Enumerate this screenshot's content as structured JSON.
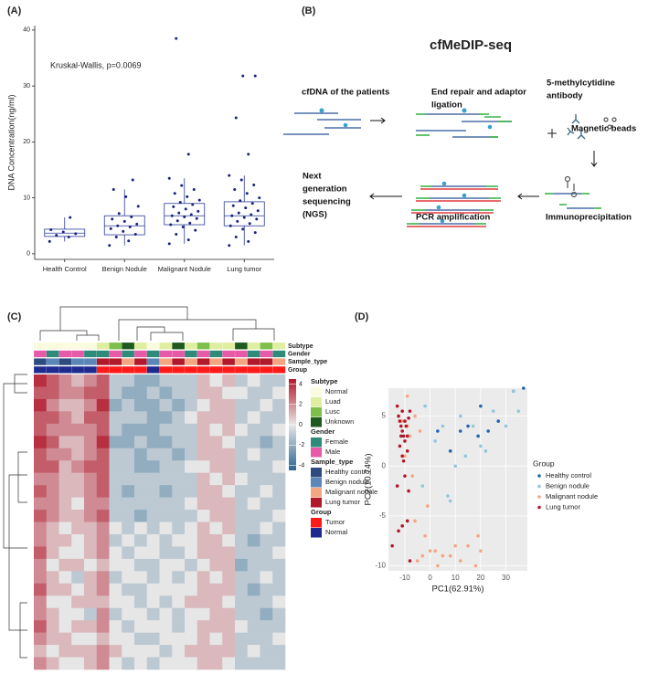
{
  "chart_data": [
    {
      "type": "box",
      "panel_label": "(A)",
      "ylabel": "DNA Concentration(ng/ml)",
      "annotation": "Kruskal-Wallis, p=0.0069",
      "categories": [
        "Health Control",
        "Benign Nodule",
        "Malignant Nodule",
        "Lung tumor"
      ],
      "q1": [
        3.1,
        3.4,
        5.2,
        5.0
      ],
      "median": [
        3.7,
        5.0,
        6.8,
        6.8
      ],
      "q3": [
        4.4,
        6.8,
        9.0,
        9.3
      ],
      "whisker_low": [
        2.2,
        1.5,
        1.8,
        1.5
      ],
      "whisker_high": [
        6.5,
        11.5,
        13.5,
        14.0
      ],
      "points": [
        [
          2.2,
          3.0,
          3.3,
          3.6,
          3.9,
          4.3,
          6.5
        ],
        [
          1.5,
          2.3,
          3.0,
          3.5,
          4.0,
          4.5,
          4.8,
          5.0,
          5.3,
          5.8,
          6.2,
          6.6,
          7.2,
          8.5,
          10.2,
          11.5,
          13.2
        ],
        [
          1.8,
          2.5,
          3.5,
          4.2,
          4.8,
          5.2,
          5.5,
          5.9,
          6.3,
          6.6,
          6.8,
          7.0,
          7.3,
          7.6,
          8.0,
          8.4,
          8.8,
          9.2,
          9.6,
          10.2,
          10.8,
          11.5,
          12.2,
          13.5,
          17.8,
          38.5
        ],
        [
          1.5,
          2.2,
          3.0,
          3.8,
          4.4,
          5.0,
          5.4,
          5.8,
          6.2,
          6.5,
          6.8,
          7.0,
          7.3,
          7.7,
          8.2,
          8.6,
          9.0,
          9.5,
          10.0,
          10.8,
          11.5,
          12.3,
          13.2,
          14.0,
          17.8,
          24.3,
          31.8,
          31.8
        ]
      ],
      "color": "#2b3a9c",
      "point_color": "#1a237e",
      "ylim": [
        -1,
        40.8
      ],
      "yticks": [
        0,
        10,
        20,
        30,
        40
      ]
    },
    {
      "type": "heatmap",
      "panel_label": "(C)",
      "colors": [
        "#2a6591",
        "#e6e6e6",
        "#b2182b"
      ],
      "zlim": [
        -4.5,
        4.5
      ],
      "zticks": [
        4,
        2,
        0,
        -2,
        -4
      ],
      "matrix": [
        [
          4,
          3,
          2,
          1,
          2,
          3,
          -1,
          -1,
          -2,
          -2,
          -1,
          -1,
          -1,
          1,
          0,
          1,
          -1,
          0,
          -1,
          -1
        ],
        [
          3,
          3,
          2,
          2,
          3,
          3,
          -1,
          -2,
          -2,
          -1,
          -2,
          -1,
          -1,
          1,
          1,
          0,
          0,
          -1,
          -1,
          0
        ],
        [
          4,
          2,
          1,
          1,
          2,
          4,
          -2,
          -1,
          -2,
          -2,
          -1,
          -2,
          -1,
          0,
          1,
          1,
          -1,
          -1,
          0,
          -1
        ],
        [
          3,
          3,
          2,
          1,
          3,
          3,
          -1,
          -1,
          -1,
          -2,
          -2,
          -1,
          0,
          1,
          1,
          1,
          -1,
          0,
          -1,
          -1
        ],
        [
          3,
          2,
          2,
          2,
          2,
          3,
          -1,
          -2,
          -2,
          -2,
          -1,
          -1,
          -1,
          1,
          0,
          1,
          0,
          -1,
          -1,
          0
        ],
        [
          4,
          3,
          1,
          1,
          2,
          4,
          -2,
          -2,
          -1,
          -2,
          -2,
          -1,
          -1,
          1,
          1,
          0,
          -1,
          -1,
          -2,
          -1
        ],
        [
          3,
          2,
          2,
          1,
          2,
          3,
          -1,
          -1,
          -2,
          -1,
          -1,
          -2,
          -1,
          1,
          1,
          1,
          -1,
          0,
          -1,
          -1
        ],
        [
          3,
          3,
          1,
          2,
          3,
          3,
          -1,
          -1,
          -2,
          -2,
          -1,
          -1,
          0,
          0,
          1,
          1,
          -1,
          -1,
          -1,
          0
        ],
        [
          2,
          2,
          1,
          1,
          2,
          3,
          -1,
          -1,
          -1,
          -1,
          -1,
          -1,
          -1,
          1,
          0,
          1,
          0,
          -1,
          -1,
          -1
        ],
        [
          3,
          2,
          1,
          1,
          2,
          3,
          -1,
          -2,
          -1,
          -1,
          -2,
          -1,
          -1,
          1,
          1,
          0,
          -1,
          -1,
          0,
          -1
        ],
        [
          2,
          2,
          1,
          0,
          2,
          2,
          -1,
          -1,
          -1,
          -1,
          -1,
          -1,
          0,
          1,
          1,
          1,
          -1,
          0,
          -1,
          -1
        ],
        [
          3,
          2,
          1,
          1,
          2,
          3,
          -1,
          -1,
          -2,
          -1,
          -1,
          -1,
          -1,
          0,
          1,
          1,
          -1,
          -1,
          -1,
          0
        ],
        [
          2,
          1,
          0,
          1,
          1,
          2,
          0,
          -1,
          0,
          -1,
          0,
          -1,
          0,
          1,
          0,
          1,
          -1,
          -1,
          0,
          -1
        ],
        [
          2,
          1,
          1,
          0,
          1,
          2,
          -1,
          0,
          -1,
          0,
          -1,
          0,
          0,
          1,
          1,
          0,
          -1,
          -2,
          -1,
          -1
        ],
        [
          3,
          1,
          0,
          0,
          1,
          2,
          0,
          -1,
          0,
          0,
          -1,
          -1,
          0,
          1,
          1,
          1,
          -1,
          -1,
          -1,
          0
        ],
        [
          2,
          0,
          1,
          1,
          0,
          1,
          0,
          0,
          -1,
          -1,
          0,
          0,
          -1,
          0,
          1,
          1,
          -2,
          -1,
          -1,
          -1
        ],
        [
          2,
          1,
          0,
          -1,
          1,
          2,
          -1,
          0,
          0,
          -1,
          0,
          -1,
          0,
          1,
          0,
          1,
          -1,
          -1,
          0,
          -1
        ],
        [
          3,
          1,
          1,
          0,
          1,
          2,
          0,
          -1,
          -1,
          0,
          0,
          0,
          0,
          1,
          1,
          1,
          -1,
          -2,
          -1,
          -1
        ],
        [
          2,
          0,
          0,
          1,
          1,
          1,
          0,
          0,
          -1,
          0,
          -1,
          0,
          1,
          1,
          1,
          0,
          -1,
          -1,
          -1,
          0
        ],
        [
          2,
          1,
          0,
          0,
          -1,
          2,
          -1,
          0,
          0,
          -1,
          0,
          -1,
          0,
          0,
          1,
          1,
          -1,
          -1,
          -2,
          -1
        ],
        [
          3,
          1,
          0,
          1,
          1,
          2,
          0,
          -1,
          0,
          0,
          0,
          -1,
          0,
          1,
          1,
          1,
          0,
          -1,
          -1,
          -1
        ],
        [
          2,
          1,
          1,
          0,
          0,
          1,
          0,
          0,
          -1,
          -1,
          0,
          0,
          0,
          1,
          0,
          1,
          -1,
          -1,
          -1,
          0
        ],
        [
          1,
          0,
          1,
          1,
          1,
          2,
          1,
          0,
          0,
          0,
          -1,
          0,
          1,
          1,
          1,
          1,
          -1,
          0,
          -1,
          -1
        ],
        [
          2,
          1,
          0,
          0,
          1,
          2,
          0,
          -1,
          0,
          -1,
          0,
          0,
          0,
          1,
          1,
          0,
          -1,
          -1,
          -1,
          -1
        ]
      ],
      "annotations": [
        {
          "name": "Subtype",
          "levels": [
            {
              "name": "Normal",
              "color": "#fbfbe0"
            },
            {
              "name": "Luad",
              "color": "#dfeea0"
            },
            {
              "name": "Lusc",
              "color": "#7dbf4b"
            },
            {
              "name": "Unknown",
              "color": "#1e5a1e"
            }
          ],
          "values": [
            "Normal",
            "Normal",
            "Normal",
            "Normal",
            "Normal",
            "Luad",
            "Lusc",
            "Unknown",
            "Luad",
            "Normal",
            "Luad",
            "Unknown",
            "Luad",
            "Lusc",
            "Luad",
            "Luad",
            "Unknown",
            "Luad",
            "Lusc",
            "Luad"
          ]
        },
        {
          "name": "Gender",
          "levels": [
            {
              "name": "Female",
              "color": "#2e8b7a"
            },
            {
              "name": "Male",
              "color": "#e75aa8"
            }
          ],
          "values": [
            "Male",
            "Female",
            "Male",
            "Male",
            "Female",
            "Female",
            "Male",
            "Female",
            "Male",
            "Female",
            "Male",
            "Male",
            "Female",
            "Male",
            "Female",
            "Male",
            "Male",
            "Female",
            "Male",
            "Female"
          ]
        },
        {
          "name": "Sample_type",
          "levels": [
            {
              "name": "Healthy control",
              "color": "#2d4b7e"
            },
            {
              "name": "Benign nodule",
              "color": "#5b86b8"
            },
            {
              "name": "Malignant nodule",
              "color": "#f4a582"
            },
            {
              "name": "Lung tumor",
              "color": "#b2182b"
            }
          ],
          "values": [
            "Healthy control",
            "Benign nodule",
            "Healthy control",
            "Benign nodule",
            "Benign nodule",
            "Lung tumor",
            "Lung tumor",
            "Malignant nodule",
            "Lung tumor",
            "Benign nodule",
            "Malignant nodule",
            "Lung tumor",
            "Malignant nodule",
            "Lung tumor",
            "Malignant nodule",
            "Lung tumor",
            "Malignant nodule",
            "Lung tumor",
            "Lung tumor",
            "Malignant nodule"
          ]
        },
        {
          "name": "Group",
          "levels": [
            {
              "name": "Tumor",
              "color": "#ff1a1a"
            },
            {
              "name": "Normal",
              "color": "#1f2a8f"
            }
          ],
          "values": [
            "Normal",
            "Normal",
            "Normal",
            "Normal",
            "Normal",
            "Tumor",
            "Tumor",
            "Tumor",
            "Tumor",
            "Normal",
            "Tumor",
            "Tumor",
            "Tumor",
            "Tumor",
            "Tumor",
            "Tumor",
            "Tumor",
            "Tumor",
            "Tumor",
            "Tumor"
          ]
        }
      ]
    },
    {
      "type": "scatter",
      "panel_label": "(D)",
      "xlabel": "PC1(62.91%)",
      "ylabel": "PC2(10.74%)",
      "legend_title": "Group",
      "xlim": [
        -16.5,
        38.5
      ],
      "ylim": [
        -10.5,
        7.8
      ],
      "xticks": [
        -10,
        0,
        10,
        20,
        30
      ],
      "yticks": [
        -10,
        -5,
        0,
        5
      ],
      "grid": true,
      "series": [
        {
          "name": "Healthy control",
          "color": "#2166ac",
          "x": [
            3,
            8,
            12,
            15,
            20,
            23,
            27,
            33,
            37,
            19
          ],
          "y": [
            3.5,
            1.5,
            3.5,
            4,
            6,
            3.5,
            4.5,
            7.5,
            7.8,
            3
          ]
        },
        {
          "name": "Benign nodule",
          "color": "#92c5de",
          "x": [
            -8,
            -3,
            2,
            5,
            7,
            10,
            14,
            17,
            20,
            25,
            30,
            33,
            35,
            -2,
            8,
            22,
            12
          ],
          "y": [
            3,
            -2,
            2.5,
            4,
            -3,
            0,
            1,
            4,
            2,
            5.5,
            4,
            7.5,
            5.5,
            6,
            -3.5,
            1.5,
            5
          ]
        },
        {
          "name": "Malignant nodule",
          "color": "#f4a582",
          "x": [
            -13,
            -11,
            -9,
            -8,
            -6,
            -4,
            -2,
            0,
            2,
            5,
            8,
            10,
            15,
            18,
            20,
            -7,
            -5,
            -3,
            -10,
            -1,
            3,
            12,
            19,
            -6,
            -9
          ],
          "y": [
            6,
            4.5,
            4,
            3,
            5,
            3.5,
            -7,
            -8.5,
            -8.5,
            -9,
            -9,
            -8,
            -8,
            -10,
            -8.5,
            -1,
            -9.5,
            -9,
            1,
            -4,
            -10,
            -9.5,
            -7,
            -5.5,
            7
          ]
        },
        {
          "name": "Lung tumor",
          "color": "#b2182b",
          "x": [
            -13,
            -12.5,
            -12,
            -11.5,
            -11,
            -11,
            -10.5,
            -10,
            -10,
            -9.5,
            -9,
            -9,
            -8.5,
            -8,
            -12,
            -11,
            -10,
            -13,
            -11,
            -9,
            -12.5,
            -8,
            -10.5,
            -11.5,
            -15,
            -8.5
          ],
          "y": [
            6,
            5,
            4.5,
            4,
            3.5,
            5.5,
            3,
            4.5,
            2.5,
            4,
            3,
            1.5,
            4.8,
            5.5,
            2,
            1,
            -1,
            -2,
            -6,
            -5.5,
            -6.5,
            -9.5,
            0.5,
            3,
            -8,
            -2.5
          ]
        }
      ]
    }
  ],
  "diagram": {
    "panel_label": "(B)",
    "title": "cfMeDIP-seq",
    "steps": [
      {
        "lines": [
          "cfDNA of the patients"
        ]
      },
      {
        "lines": [
          "End repair and adaptor",
          "ligation"
        ]
      },
      {
        "lines": [
          "5-methylcytidine",
          "antibody"
        ]
      },
      {
        "lines": [
          "Magnetic beads"
        ]
      },
      {
        "lines": [
          "Immunoprecipitation"
        ]
      },
      {
        "lines": [
          "PCR amplification"
        ]
      },
      {
        "lines": [
          "Next",
          "generation",
          "sequencing",
          "(NGS)"
        ]
      }
    ]
  }
}
